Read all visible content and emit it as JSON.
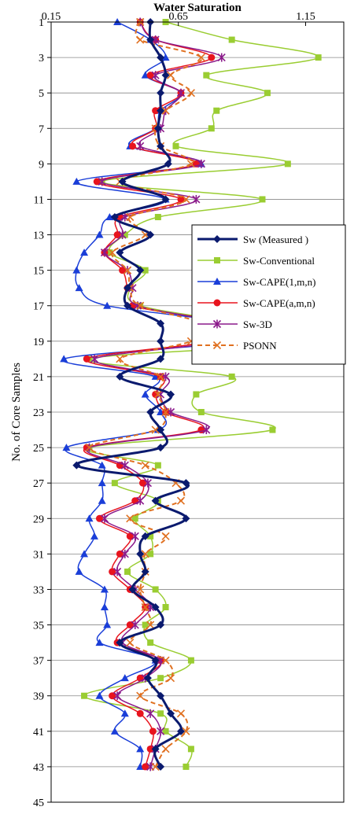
{
  "chart_data": {
    "type": "line",
    "title": "Water Saturation",
    "ylabel": "No. of Core Samples",
    "x_range": [
      0.15,
      1.3
    ],
    "x_ticks": [
      "0.15",
      "0.65",
      "1.15"
    ],
    "x_tick_values": [
      0.15,
      0.65,
      1.15
    ],
    "y_range": [
      1,
      45
    ],
    "y_inverted": true,
    "y_ticks": [
      "1",
      "3",
      "5",
      "7",
      "9",
      "11",
      "13",
      "15",
      "17",
      "19",
      "21",
      "23",
      "25",
      "27",
      "29",
      "31",
      "33",
      "35",
      "37",
      "39",
      "41",
      "43",
      "45"
    ],
    "y_tick_values": [
      1,
      3,
      5,
      7,
      9,
      11,
      13,
      15,
      17,
      19,
      21,
      23,
      25,
      27,
      29,
      31,
      33,
      35,
      37,
      39,
      41,
      43,
      45
    ],
    "grid": "horizontal",
    "legend_position": "right",
    "samples": [
      1,
      2,
      3,
      4,
      5,
      6,
      7,
      8,
      9,
      10,
      11,
      12,
      13,
      14,
      15,
      16,
      17,
      18,
      19,
      20,
      21,
      22,
      23,
      24,
      25,
      26,
      27,
      28,
      29,
      30,
      31,
      32,
      33,
      34,
      35,
      36,
      37,
      38,
      39,
      40,
      41,
      42,
      43
    ],
    "series": [
      {
        "name": "Sw (Measured )",
        "color": "#0a1a6e",
        "marker": "diamond",
        "dashed": false,
        "x": [
          0.54,
          0.54,
          0.58,
          0.6,
          0.58,
          0.58,
          0.57,
          0.58,
          0.61,
          0.43,
          0.6,
          0.4,
          0.54,
          0.42,
          0.5,
          0.45,
          0.45,
          0.58,
          0.58,
          0.58,
          0.42,
          0.62,
          0.54,
          0.58,
          0.58,
          0.25,
          0.68,
          0.56,
          0.68,
          0.52,
          0.5,
          0.52,
          0.47,
          0.56,
          0.58,
          0.42,
          0.56,
          0.53,
          0.58,
          0.62,
          0.66,
          0.56,
          0.58
        ]
      },
      {
        "name": "Sw-Conventional",
        "color": "#9acd32",
        "marker": "square",
        "dashed": false,
        "x": [
          0.6,
          0.86,
          1.2,
          0.76,
          1.0,
          0.8,
          0.78,
          0.64,
          1.08,
          0.35,
          0.98,
          0.57,
          0.44,
          0.38,
          0.52,
          0.46,
          0.5,
          0.9,
          1.23,
          0.3,
          0.86,
          0.72,
          0.74,
          1.02,
          0.3,
          0.57,
          0.4,
          0.57,
          0.48,
          0.54,
          0.54,
          0.45,
          0.56,
          0.6,
          0.52,
          0.54,
          0.7,
          0.58,
          0.28,
          0.58,
          0.6,
          0.7,
          0.68
        ]
      },
      {
        "name": "Sw-CAPE(1,m,n)",
        "color": "#1a3ed8",
        "marker": "triangle",
        "dashed": false,
        "x": [
          0.41,
          0.54,
          0.6,
          0.52,
          0.66,
          0.58,
          0.56,
          0.46,
          0.74,
          0.25,
          0.6,
          0.38,
          0.34,
          0.28,
          0.25,
          0.26,
          0.37,
          0.86,
          0.89,
          0.2,
          0.56,
          0.52,
          0.58,
          0.57,
          0.21,
          0.35,
          0.35,
          0.35,
          0.3,
          0.32,
          0.28,
          0.26,
          0.36,
          0.36,
          0.37,
          0.34,
          0.56,
          0.44,
          0.34,
          0.44,
          0.4,
          0.5,
          0.5
        ]
      },
      {
        "name": "Sw-CAPE(a,m,n)",
        "color": "#e8141e",
        "marker": "circle",
        "dashed": false,
        "x": [
          0.5,
          0.56,
          0.78,
          0.54,
          0.66,
          0.56,
          0.56,
          0.47,
          0.72,
          0.33,
          0.66,
          0.42,
          0.41,
          0.36,
          0.43,
          0.45,
          0.47,
          0.84,
          0.78,
          0.29,
          0.58,
          0.56,
          0.6,
          0.74,
          0.29,
          0.42,
          0.51,
          0.48,
          0.34,
          0.46,
          0.42,
          0.39,
          0.46,
          0.52,
          0.46,
          0.41,
          0.58,
          0.5,
          0.39,
          0.5,
          0.55,
          0.54,
          0.52
        ]
      },
      {
        "name": "Sw-3D",
        "color": "#8b1a8b",
        "marker": "star",
        "dashed": false,
        "x": [
          0.5,
          0.56,
          0.82,
          0.56,
          0.66,
          0.6,
          0.58,
          0.5,
          0.74,
          0.35,
          0.72,
          0.44,
          0.43,
          0.36,
          0.45,
          0.47,
          0.49,
          0.82,
          0.82,
          0.32,
          0.6,
          0.58,
          0.62,
          0.76,
          0.3,
          0.44,
          0.53,
          0.5,
          0.36,
          0.48,
          0.44,
          0.41,
          0.48,
          0.54,
          0.48,
          0.43,
          0.58,
          0.52,
          0.41,
          0.54,
          0.58,
          0.56,
          0.54
        ]
      },
      {
        "name": "PSONN",
        "color": "#e07020",
        "marker": "x",
        "dashed": true,
        "x": [
          0.5,
          0.5,
          0.74,
          0.62,
          0.7,
          0.6,
          0.56,
          0.58,
          0.7,
          0.42,
          0.68,
          0.46,
          0.52,
          0.39,
          0.45,
          0.46,
          0.5,
          0.74,
          0.7,
          0.42,
          0.58,
          0.57,
          0.6,
          0.56,
          0.3,
          0.52,
          0.64,
          0.66,
          0.46,
          0.6,
          0.52,
          0.52,
          0.5,
          0.52,
          0.54,
          0.46,
          0.6,
          0.62,
          0.5,
          0.66,
          0.68,
          0.6,
          0.56
        ]
      }
    ]
  }
}
